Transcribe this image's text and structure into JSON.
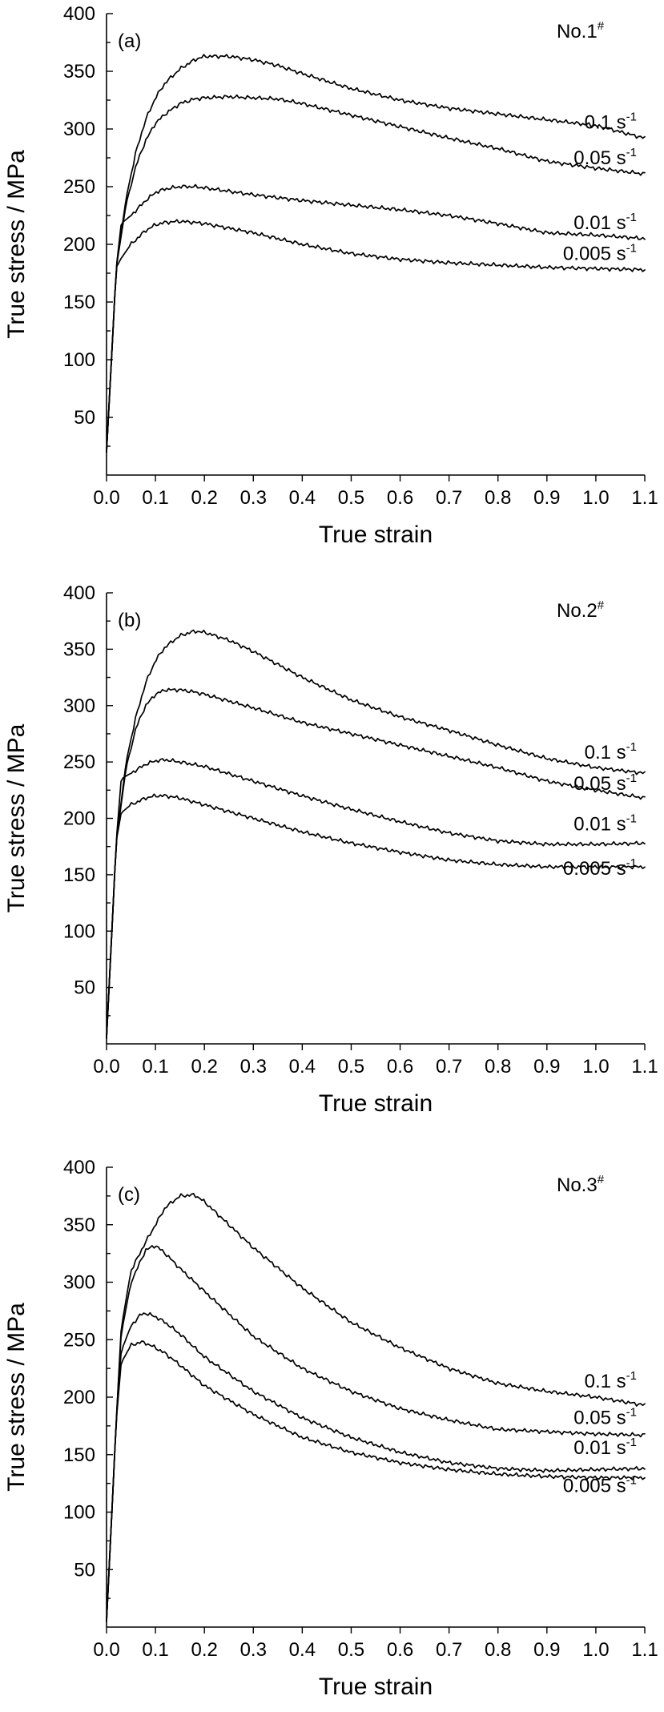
{
  "chart_data": [
    {
      "type": "line",
      "panel": "(a)",
      "sample": "No.1",
      "sample_sup": "#",
      "xlabel": "True strain",
      "ylabel": "True stress / MPa",
      "xlim": [
        0,
        1.1
      ],
      "ylim": [
        0,
        400
      ],
      "xticks": [
        "0.0",
        "0.1",
        "0.2",
        "0.3",
        "0.4",
        "0.5",
        "0.6",
        "0.7",
        "0.8",
        "0.9",
        "1.0",
        "1.1"
      ],
      "yticks": [
        "50",
        "100",
        "150",
        "200",
        "250",
        "300",
        "350",
        "400"
      ],
      "series": [
        {
          "name": "0.1 s",
          "sup": "-1",
          "x": [
            0,
            0.02,
            0.04,
            0.06,
            0.08,
            0.1,
            0.12,
            0.15,
            0.18,
            0.2,
            0.25,
            0.3,
            0.35,
            0.4,
            0.5,
            0.6,
            0.7,
            0.8,
            0.9,
            1.0,
            1.1
          ],
          "y": [
            20,
            180,
            240,
            280,
            308,
            327,
            340,
            352,
            360,
            363,
            363,
            360,
            355,
            348,
            335,
            325,
            318,
            313,
            308,
            303,
            292
          ]
        },
        {
          "name": "0.05 s",
          "sup": "-1",
          "x": [
            0,
            0.02,
            0.04,
            0.06,
            0.08,
            0.1,
            0.12,
            0.15,
            0.18,
            0.2,
            0.25,
            0.3,
            0.35,
            0.4,
            0.5,
            0.6,
            0.7,
            0.8,
            0.9,
            1.0,
            1.1
          ],
          "y": [
            20,
            180,
            235,
            268,
            290,
            305,
            313,
            322,
            326,
            327,
            328,
            327,
            326,
            322,
            312,
            302,
            292,
            283,
            272,
            266,
            261
          ]
        },
        {
          "name": "0.01 s",
          "sup": "-1",
          "x": [
            0,
            0.02,
            0.03,
            0.05,
            0.08,
            0.1,
            0.12,
            0.15,
            0.18,
            0.2,
            0.3,
            0.4,
            0.5,
            0.6,
            0.7,
            0.8,
            0.9,
            1.0,
            1.1
          ],
          "y": [
            20,
            180,
            218,
            225,
            238,
            245,
            248,
            250,
            250,
            249,
            243,
            238,
            234,
            230,
            225,
            218,
            210,
            208,
            205
          ]
        },
        {
          "name": "0.005 s",
          "sup": "-1",
          "x": [
            0,
            0.02,
            0.03,
            0.05,
            0.08,
            0.1,
            0.12,
            0.15,
            0.18,
            0.2,
            0.3,
            0.4,
            0.5,
            0.6,
            0.7,
            0.8,
            0.9,
            1.0,
            1.1
          ],
          "y": [
            20,
            180,
            188,
            200,
            212,
            217,
            219,
            220,
            219,
            218,
            210,
            200,
            192,
            187,
            184,
            182,
            180,
            179,
            178
          ]
        }
      ]
    },
    {
      "type": "line",
      "panel": "(b)",
      "sample": "No.2",
      "sample_sup": "#",
      "xlabel": "True strain",
      "ylabel": "True stress / MPa",
      "xlim": [
        0,
        1.1
      ],
      "ylim": [
        0,
        400
      ],
      "xticks": [
        "0.0",
        "0.1",
        "0.2",
        "0.3",
        "0.4",
        "0.5",
        "0.6",
        "0.7",
        "0.8",
        "0.9",
        "1.0",
        "1.1"
      ],
      "yticks": [
        "50",
        "100",
        "150",
        "200",
        "250",
        "300",
        "350",
        "400"
      ],
      "series": [
        {
          "name": "0.1 s",
          "sup": "-1",
          "x": [
            0,
            0.02,
            0.04,
            0.06,
            0.08,
            0.1,
            0.12,
            0.15,
            0.18,
            0.2,
            0.25,
            0.3,
            0.4,
            0.5,
            0.6,
            0.7,
            0.8,
            0.9,
            1.0,
            1.1
          ],
          "y": [
            5,
            180,
            250,
            290,
            320,
            340,
            352,
            362,
            366,
            365,
            358,
            348,
            325,
            305,
            290,
            278,
            265,
            253,
            245,
            240
          ]
        },
        {
          "name": "0.05 s",
          "sup": "-1",
          "x": [
            0,
            0.02,
            0.04,
            0.06,
            0.08,
            0.1,
            0.12,
            0.15,
            0.18,
            0.2,
            0.3,
            0.4,
            0.5,
            0.6,
            0.7,
            0.8,
            0.9,
            1.0,
            1.1
          ],
          "y": [
            5,
            180,
            245,
            280,
            300,
            310,
            314,
            314,
            312,
            310,
            298,
            285,
            275,
            265,
            255,
            245,
            233,
            225,
            218
          ]
        },
        {
          "name": "0.01 s",
          "sup": "-1",
          "x": [
            0,
            0.02,
            0.03,
            0.05,
            0.08,
            0.1,
            0.12,
            0.15,
            0.2,
            0.3,
            0.4,
            0.5,
            0.6,
            0.7,
            0.8,
            0.9,
            1.0,
            1.1
          ],
          "y": [
            5,
            180,
            235,
            240,
            248,
            251,
            252,
            250,
            246,
            233,
            220,
            208,
            197,
            187,
            180,
            177,
            177,
            178
          ]
        },
        {
          "name": "0.005 s",
          "sup": "-1",
          "x": [
            0,
            0.02,
            0.03,
            0.05,
            0.08,
            0.1,
            0.12,
            0.15,
            0.2,
            0.3,
            0.4,
            0.5,
            0.6,
            0.7,
            0.8,
            0.9,
            1.0,
            1.1
          ],
          "y": [
            5,
            180,
            205,
            212,
            218,
            220,
            220,
            218,
            212,
            200,
            188,
            178,
            170,
            163,
            159,
            157,
            157,
            157
          ]
        }
      ]
    },
    {
      "type": "line",
      "panel": "(c)",
      "sample": "No.3",
      "sample_sup": "#",
      "xlabel": "True strain",
      "ylabel": "True stress / MPa",
      "xlim": [
        0,
        1.1
      ],
      "ylim": [
        0,
        400
      ],
      "xticks": [
        "0.0",
        "0.1",
        "0.2",
        "0.3",
        "0.4",
        "0.5",
        "0.6",
        "0.7",
        "0.8",
        "0.9",
        "1.0",
        "1.1"
      ],
      "yticks": [
        "50",
        "100",
        "150",
        "200",
        "250",
        "300",
        "350",
        "400"
      ],
      "series": [
        {
          "name": "0.1 s",
          "sup": "-1",
          "x": [
            0,
            0.02,
            0.03,
            0.05,
            0.08,
            0.1,
            0.12,
            0.15,
            0.18,
            0.2,
            0.3,
            0.4,
            0.5,
            0.6,
            0.7,
            0.8,
            0.9,
            1.0,
            1.1
          ],
          "y": [
            5,
            180,
            260,
            310,
            335,
            350,
            365,
            375,
            376,
            370,
            330,
            295,
            265,
            243,
            225,
            212,
            205,
            200,
            193
          ]
        },
        {
          "name": "0.05 s",
          "sup": "-1",
          "x": [
            0,
            0.02,
            0.03,
            0.05,
            0.08,
            0.1,
            0.12,
            0.15,
            0.2,
            0.3,
            0.4,
            0.5,
            0.6,
            0.7,
            0.8,
            0.9,
            1.0,
            1.1
          ],
          "y": [
            5,
            180,
            255,
            300,
            328,
            332,
            325,
            312,
            292,
            253,
            225,
            205,
            190,
            180,
            172,
            170,
            168,
            167
          ]
        },
        {
          "name": "0.01 s",
          "sup": "-1",
          "x": [
            0,
            0.02,
            0.03,
            0.05,
            0.07,
            0.08,
            0.1,
            0.12,
            0.15,
            0.2,
            0.3,
            0.4,
            0.5,
            0.6,
            0.7,
            0.8,
            0.9,
            1.0,
            1.1
          ],
          "y": [
            5,
            180,
            240,
            262,
            272,
            273,
            270,
            265,
            255,
            235,
            205,
            182,
            165,
            152,
            143,
            138,
            136,
            137,
            138
          ]
        },
        {
          "name": "0.005 s",
          "sup": "-1",
          "x": [
            0,
            0.02,
            0.03,
            0.05,
            0.07,
            0.08,
            0.1,
            0.12,
            0.15,
            0.2,
            0.3,
            0.4,
            0.5,
            0.6,
            0.7,
            0.8,
            0.9,
            1.0,
            1.1
          ],
          "y": [
            5,
            180,
            230,
            245,
            248,
            247,
            243,
            238,
            228,
            210,
            185,
            165,
            152,
            143,
            137,
            133,
            131,
            130,
            130
          ]
        }
      ]
    }
  ]
}
